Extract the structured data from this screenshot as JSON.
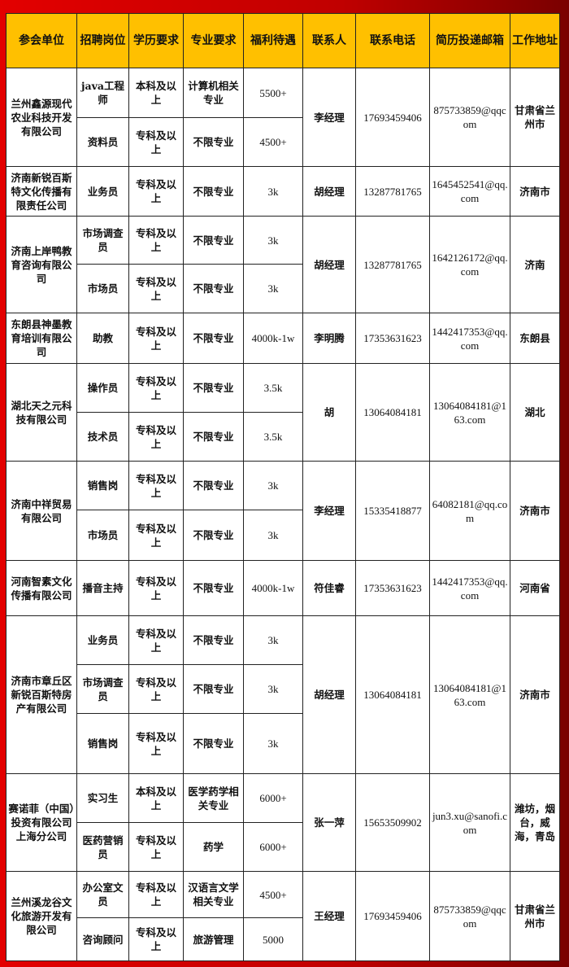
{
  "headers": [
    "参会单位",
    "招聘岗位",
    "学历要求",
    "专业要求",
    "福利待遇",
    "联系人",
    "联系电话",
    "简历投递邮箱",
    "工作地址"
  ],
  "companies": [
    {
      "name": "兰州鑫源现代农业科技开发有限公司",
      "contact": "李经理",
      "phone": "17693459406",
      "email": "875733859@qqcom",
      "address": "甘肃省兰州市",
      "positions": [
        {
          "title": "java工程师",
          "education": "本科及以上",
          "major": "计算机相关专业",
          "salary": "5500+"
        },
        {
          "title": "资料员",
          "education": "专科及以上",
          "major": "不限专业",
          "salary": "4500+"
        }
      ]
    },
    {
      "name": "济南新锐百斯特文化传播有限责任公司",
      "contact": "胡经理",
      "phone": "13287781765",
      "email": "1645452541@qq.com",
      "address": "济南市",
      "positions": [
        {
          "title": "业务员",
          "education": "专科及以上",
          "major": "不限专业",
          "salary": "3k"
        }
      ]
    },
    {
      "name": "济南上岸鸭教育咨询有限公司",
      "contact": "胡经理",
      "phone": "13287781765",
      "email": "1642126172@qq.com",
      "address": "济南",
      "positions": [
        {
          "title": "市场调查员",
          "education": "专科及以上",
          "major": "不限专业",
          "salary": "3k"
        },
        {
          "title": "市场员",
          "education": "专科及以上",
          "major": "不限专业",
          "salary": "3k"
        }
      ]
    },
    {
      "name": "东朗县神墨教育培训有限公司",
      "contact": "李明腾",
      "phone": "17353631623",
      "email": "1442417353@qq.com",
      "address": "东朗县",
      "positions": [
        {
          "title": "助教",
          "education": "专科及以上",
          "major": "不限专业",
          "salary": "4000k-1w"
        }
      ]
    },
    {
      "name": "湖北天之元科技有限公司",
      "contact": "胡",
      "phone": "13064084181",
      "email": "13064084181@163.com",
      "address": "湖北",
      "positions": [
        {
          "title": "操作员",
          "education": "专科及以上",
          "major": "不限专业",
          "salary": "3.5k"
        },
        {
          "title": "技术员",
          "education": "专科及以上",
          "major": "不限专业",
          "salary": "3.5k"
        }
      ]
    },
    {
      "name": "济南中祥贸易有限公司",
      "contact": "李经理",
      "phone": "15335418877",
      "email": "64082181@qq.com",
      "address": "济南市",
      "positions": [
        {
          "title": "销售岗",
          "education": "专科及以上",
          "major": "不限专业",
          "salary": "3k"
        },
        {
          "title": "市场员",
          "education": "专科及以上",
          "major": "不限专业",
          "salary": "3k"
        }
      ]
    },
    {
      "name": "河南智素文化传播有限公司",
      "contact": "符佳睿",
      "phone": "17353631623",
      "email": "1442417353@qq.com",
      "address": "河南省",
      "positions": [
        {
          "title": "播音主持",
          "education": "专科及以上",
          "major": "不限专业",
          "salary": "4000k-1w"
        }
      ]
    },
    {
      "name": "济南市章丘区新锐百斯特房产有限公司",
      "contact": "胡经理",
      "phone": "13064084181",
      "email": "13064084181@163.com",
      "address": "济南市",
      "positions": [
        {
          "title": "业务员",
          "education": "专科及以上",
          "major": "不限专业",
          "salary": "3k"
        },
        {
          "title": "市场调查员",
          "education": "专科及以上",
          "major": "不限专业",
          "salary": "3k"
        },
        {
          "title": "销售岗",
          "education": "专科及以上",
          "major": "不限专业",
          "salary": "3k"
        }
      ]
    },
    {
      "name": "赛诺菲（中国）投资有限公司上海分公司",
      "contact": "张一萍",
      "phone": "15653509902",
      "email": "jun3.xu@sanofi.com",
      "address": "潍坊，烟台，威海，青岛",
      "positions": [
        {
          "title": "实习生",
          "education": "本科及以上",
          "major": "医学药学相关专业",
          "salary": "6000+"
        },
        {
          "title": "医药营销员",
          "education": "专科及以上",
          "major": "药学",
          "salary": "6000+"
        }
      ]
    },
    {
      "name": "兰州溪龙谷文化旅游开发有限公司",
      "contact": "王经理",
      "phone": "17693459406",
      "email": "875733859@qqcom",
      "address": "甘肃省兰州市",
      "positions": [
        {
          "title": "办公室文员",
          "education": "专科及以上",
          "major": "汉语言文学相关专业",
          "salary": "4500+"
        },
        {
          "title": "咨询顾问",
          "education": "专科及以上",
          "major": "旅游管理",
          "salary": "5000"
        }
      ]
    }
  ]
}
